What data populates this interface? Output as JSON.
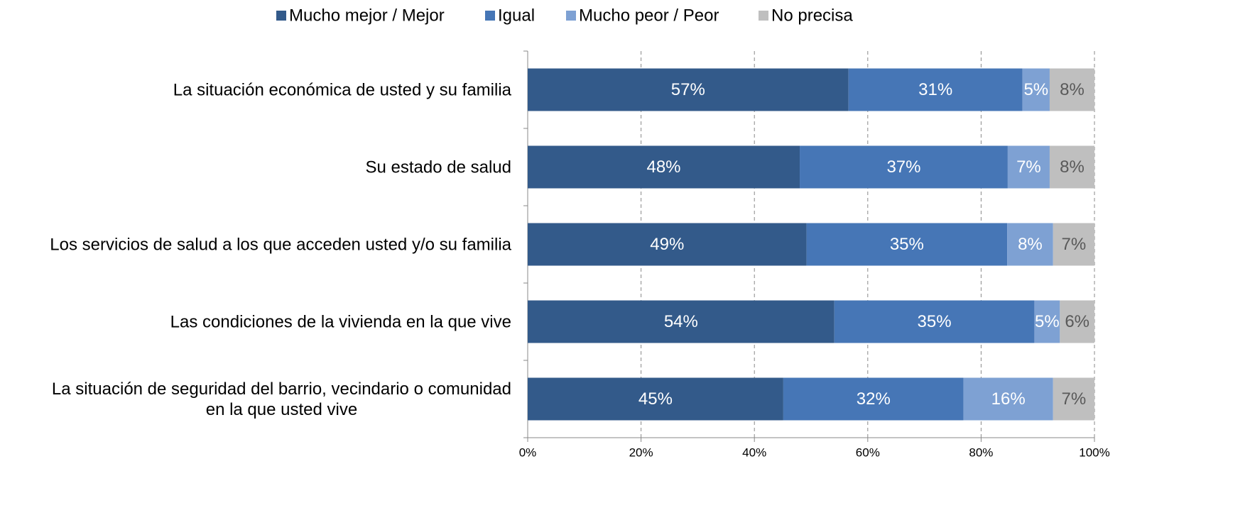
{
  "chart_data": {
    "type": "stacked-barh",
    "categories": [
      "La situación económica de usted y su familia",
      "Su estado de salud",
      "Los servicios de salud a los que acceden usted y/o su familia",
      "Las condiciones de la vivienda en la que vive",
      "La situación de seguridad del barrio, vecindario o comunidad\nen la que usted vive"
    ],
    "series": [
      {
        "name": "Mucho mejor / Mejor",
        "color": "#335a8a",
        "values": [
          56.6,
          48.0,
          49.2,
          54.1,
          45.1
        ],
        "value_labels": [
          "57%",
          "48%",
          "49%",
          "54%",
          "45%"
        ]
      },
      {
        "name": "Igual",
        "color": "#4676b6",
        "values": [
          30.7,
          36.7,
          35.4,
          35.3,
          31.8
        ],
        "value_labels": [
          "31%",
          "37%",
          "35%",
          "35%",
          "32%"
        ]
      },
      {
        "name": "Mucho peor / Peor",
        "color": "#7ea1d3",
        "values": [
          4.8,
          7.4,
          8.1,
          4.5,
          15.8
        ],
        "value_labels": [
          "5%",
          "7%",
          "8%",
          "5%",
          "16%"
        ]
      },
      {
        "name": "No precisa",
        "color": "#bfbfbf",
        "values": [
          7.9,
          7.9,
          7.3,
          6.1,
          7.3
        ],
        "value_labels": [
          "8%",
          "8%",
          "7%",
          "6%",
          "7%"
        ]
      }
    ],
    "xlim": [
      0,
      100
    ],
    "xticks": [
      {
        "value": 0,
        "label": "0%"
      },
      {
        "value": 20,
        "label": "20%"
      },
      {
        "value": 40,
        "label": "40%"
      },
      {
        "value": 60,
        "label": "60%"
      },
      {
        "value": 80,
        "label": "80%"
      },
      {
        "value": 100,
        "label": "100%"
      }
    ],
    "grid": true,
    "legend": "top"
  }
}
